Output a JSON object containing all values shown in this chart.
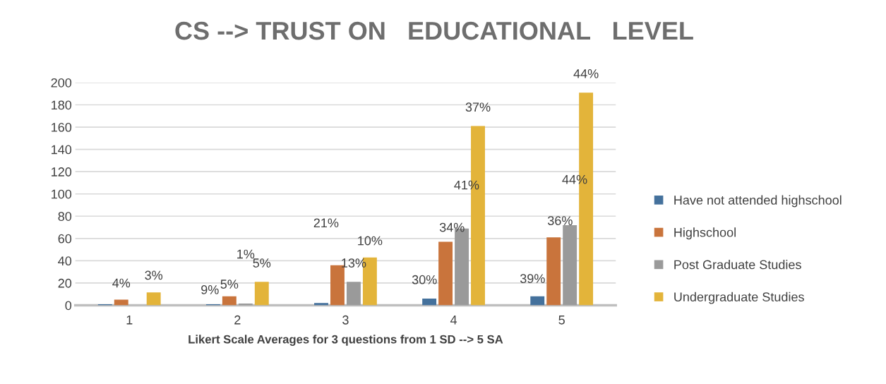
{
  "chart_data": {
    "type": "bar",
    "title": "CS --> TRUST ON   EDUCATIONAL   LEVEL",
    "xlabel": "Likert Scale Averages for 3 questions from 1 SD --> 5 SA",
    "categories": [
      "1",
      "2",
      "3",
      "4",
      "5"
    ],
    "series": [
      {
        "name": "Have not attended highschool",
        "color": "#44719c",
        "values": [
          1,
          1,
          2,
          6,
          8
        ]
      },
      {
        "name": "Highschool",
        "color": "#c9743c",
        "values": [
          5,
          8,
          36,
          57,
          61
        ]
      },
      {
        "name": "Post Graduate Studies",
        "color": "#9a9a9a",
        "values": [
          0,
          1.5,
          21,
          69,
          72
        ]
      },
      {
        "name": "Undergraduate Studies",
        "color": "#e3b43a",
        "values": [
          11.5,
          21,
          43,
          161,
          191
        ]
      }
    ],
    "annotations": [
      "4%",
      "3%",
      "9%",
      "5%",
      "1%",
      "5%",
      "21%",
      "13%",
      "10%",
      "30%",
      "34%",
      "41%",
      "37%",
      "39%",
      "36%",
      "44%",
      "44%"
    ],
    "ylim": [
      0,
      200
    ],
    "yticks": [
      0,
      20,
      40,
      60,
      80,
      100,
      120,
      140,
      160,
      180,
      200
    ],
    "grid": "y",
    "legend": "right"
  }
}
